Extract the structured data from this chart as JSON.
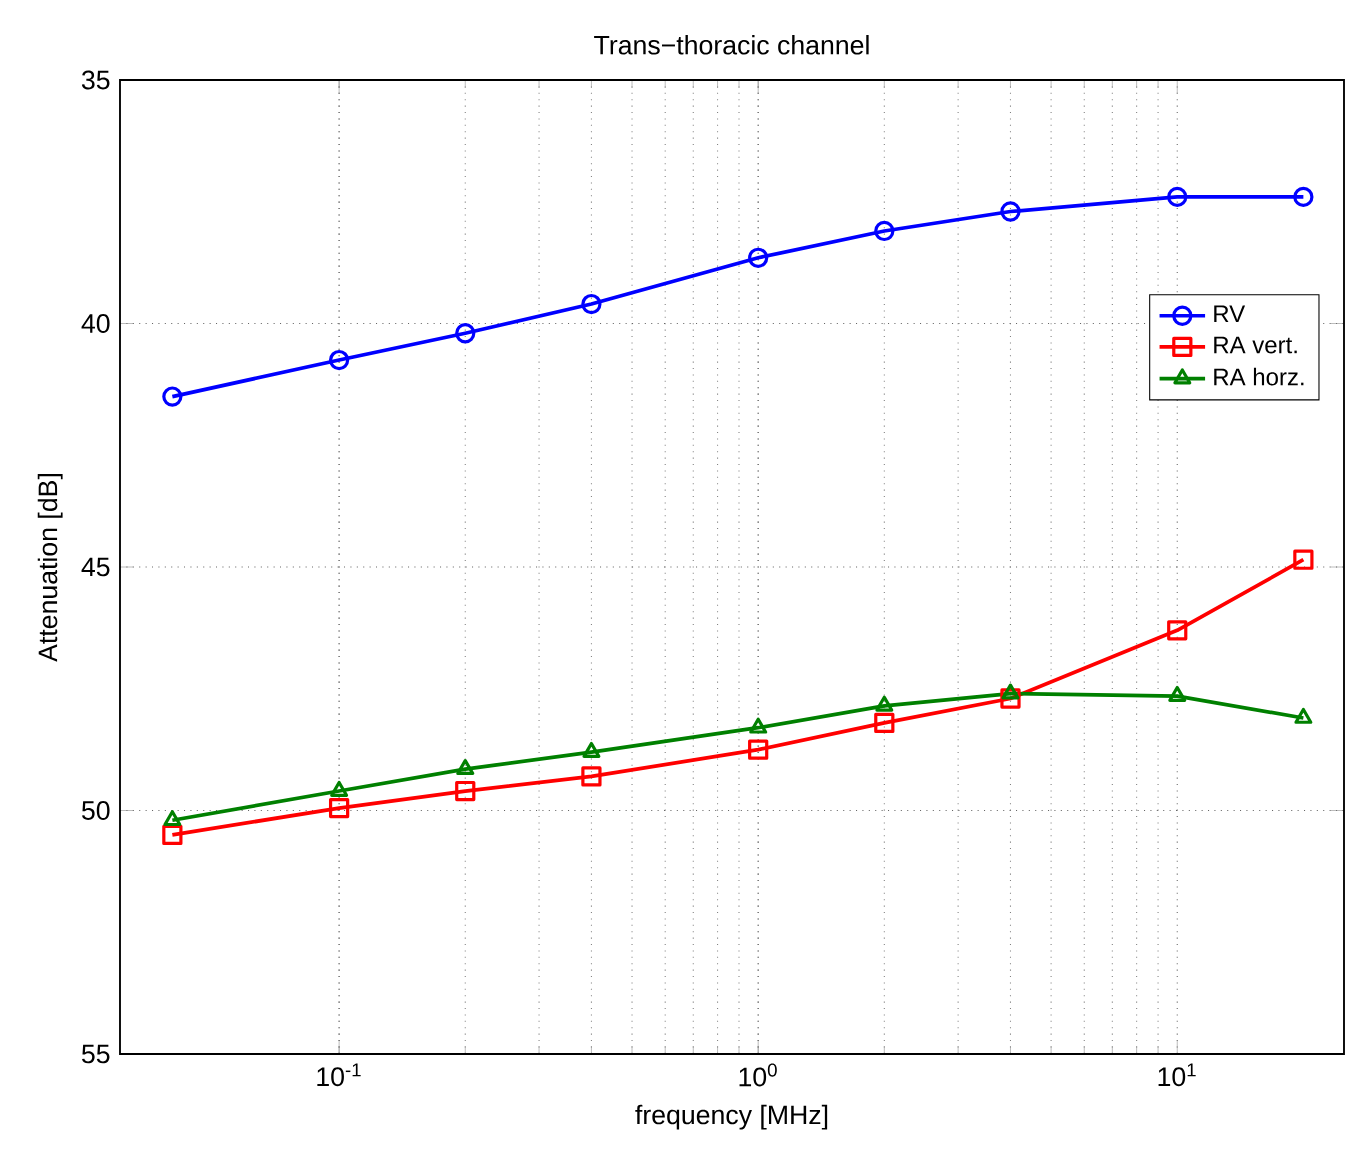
{
  "chart_data": {
    "type": "line",
    "title": "Trans−thoracic channel",
    "xlabel": "frequency [MHz]",
    "ylabel": "Attenuation [dB]",
    "x": [
      0.04,
      0.1,
      0.2,
      0.4,
      1,
      2,
      4,
      10,
      20
    ],
    "series": [
      {
        "name": "RV",
        "color": "#0000ff",
        "marker": "circle",
        "values": [
          41.5,
          40.75,
          40.2,
          39.6,
          38.65,
          38.1,
          37.7,
          37.4,
          37.4
        ]
      },
      {
        "name": "RA vert.",
        "color": "#ff0000",
        "marker": "square",
        "values": [
          50.5,
          49.95,
          49.6,
          49.3,
          48.75,
          48.2,
          47.7,
          46.3,
          44.85
        ]
      },
      {
        "name": "RA horz.",
        "color": "#008000",
        "marker": "triangle",
        "values": [
          50.2,
          49.6,
          49.15,
          48.8,
          48.3,
          47.85,
          47.6,
          47.65,
          48.1
        ]
      }
    ],
    "log": "x",
    "xlim": [
      0.03,
      25
    ],
    "ylim": [
      55,
      35
    ],
    "xticks": [
      {
        "value": 0.1,
        "label": "10$^{-1}$"
      },
      {
        "value": 1,
        "label": "10$^{0}$"
      },
      {
        "value": 10,
        "label": "10$^{1}$"
      }
    ],
    "yticks": [
      35,
      40,
      45,
      50,
      55
    ],
    "grid": true,
    "legend": "top right",
    "line_style": "solid"
  }
}
